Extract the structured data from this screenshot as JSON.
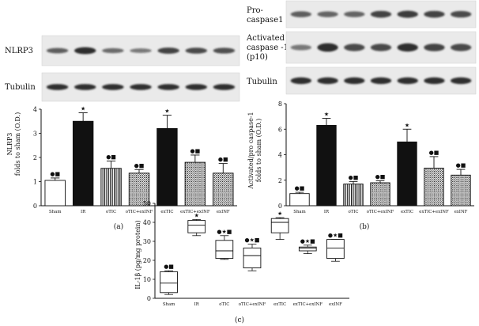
{
  "figure": {
    "panel_labels": [
      "(a)",
      "(b)",
      "(c)"
    ]
  },
  "colors": {
    "bar_white": "#ffffff",
    "bar_black": "#111111",
    "stroke": "#111111",
    "blot_bg": "#e9e9e9",
    "band": "#1b1b1b"
  },
  "blots": {
    "a": [
      {
        "label": "NLRP3",
        "intensity": [
          0.55,
          0.95,
          0.45,
          0.35,
          0.75,
          0.7,
          0.65
        ]
      },
      {
        "label": "Tubulin",
        "intensity": [
          0.9,
          0.9,
          0.9,
          0.9,
          0.9,
          0.9,
          0.9
        ]
      }
    ],
    "b": [
      {
        "label": "Pro-caspase1",
        "label_lines": [
          "Pro-",
          "caspase1"
        ],
        "intensity": [
          0.55,
          0.5,
          0.5,
          0.75,
          0.8,
          0.75,
          0.7
        ]
      },
      {
        "label": "Activated caspase -1 (p10)",
        "label_lines": [
          "Activated",
          "caspase -1",
          "(p10)"
        ],
        "intensity": [
          0.35,
          0.95,
          0.7,
          0.7,
          0.9,
          0.75,
          0.7
        ]
      },
      {
        "label": "Tubulin",
        "label_lines": [
          "Tubulin"
        ],
        "intensity": [
          0.9,
          0.9,
          0.9,
          0.9,
          0.9,
          0.9,
          0.9
        ]
      }
    ]
  },
  "chart_data": [
    {
      "type": "bar",
      "panel": "(a)",
      "categories": [
        "Sham",
        "IR",
        "oTIC",
        "oTIC+exINF",
        "exTIC",
        "exTIC+exINF",
        "exINF"
      ],
      "values": [
        1.05,
        3.5,
        1.55,
        1.35,
        3.2,
        1.8,
        1.35
      ],
      "errors": [
        0.1,
        0.35,
        0.3,
        0.15,
        0.55,
        0.3,
        0.4
      ],
      "annotations": [
        "●■",
        "★",
        "●■",
        "●■",
        "★",
        "●■",
        "●■"
      ],
      "fills": [
        "white",
        "black",
        "vstripe",
        "dots",
        "black",
        "dots",
        "dots"
      ],
      "ylabel_lines": [
        "NLRP3",
        "folds to sham (O.D.)"
      ],
      "ylim": [
        0,
        4
      ],
      "yticks": [
        "0",
        "1",
        "2",
        "3",
        "4"
      ]
    },
    {
      "type": "bar",
      "panel": "(b)",
      "categories": [
        "Sham",
        "IR",
        "oTIC",
        "oTIC+exINF",
        "exTIC",
        "exTIC+exINF",
        "exINF"
      ],
      "values": [
        0.95,
        6.3,
        1.7,
        1.8,
        5.0,
        2.95,
        2.4
      ],
      "errors": [
        0.1,
        0.55,
        0.2,
        0.15,
        1.0,
        0.9,
        0.45
      ],
      "annotations": [
        "●■",
        "★",
        "●■",
        "●■",
        "★",
        "●■",
        "●■"
      ],
      "fills": [
        "white",
        "black",
        "vstripe",
        "dots",
        "black",
        "dots",
        "dots"
      ],
      "ylabel_lines": [
        "Activated/pro caspase-1",
        "folds to sham (O.D.)"
      ],
      "ylim": [
        0,
        8
      ],
      "yticks": [
        "0",
        "2",
        "4",
        "6",
        "8"
      ]
    },
    {
      "type": "box",
      "panel": "(c)",
      "categories": [
        "Sham",
        "IR",
        "oTIC",
        "oTIC+exINF",
        "exTIC",
        "exTIC+exINF",
        "exINF"
      ],
      "boxes": [
        {
          "min": 2,
          "q1": 3,
          "median": 8,
          "q3": 14,
          "max": 14.5
        },
        {
          "min": 33,
          "q1": 34.5,
          "median": 38.5,
          "q3": 41,
          "max": 41.5
        },
        {
          "min": 20.5,
          "q1": 21,
          "median": 25,
          "q3": 30.5,
          "max": 33
        },
        {
          "min": 14.5,
          "q1": 16,
          "median": 22.5,
          "q3": 26.5,
          "max": 28.5
        },
        {
          "min": 31,
          "q1": 34.5,
          "median": 40,
          "q3": 42,
          "max": 42.5
        },
        {
          "min": 23.5,
          "q1": 25,
          "median": 26.5,
          "q3": 27,
          "max": 28
        },
        {
          "min": 19.5,
          "q1": 21,
          "median": 26.5,
          "q3": 31,
          "max": 31
        }
      ],
      "annotations": [
        "●■",
        "★",
        "●★■",
        "●★■",
        "★",
        "●★■",
        "●★■"
      ],
      "ylabel": "IL-1β (pg/mg protein)",
      "ylim": [
        0,
        50
      ],
      "yticks": [
        "0",
        "10",
        "20",
        "30",
        "40",
        "50"
      ]
    }
  ]
}
